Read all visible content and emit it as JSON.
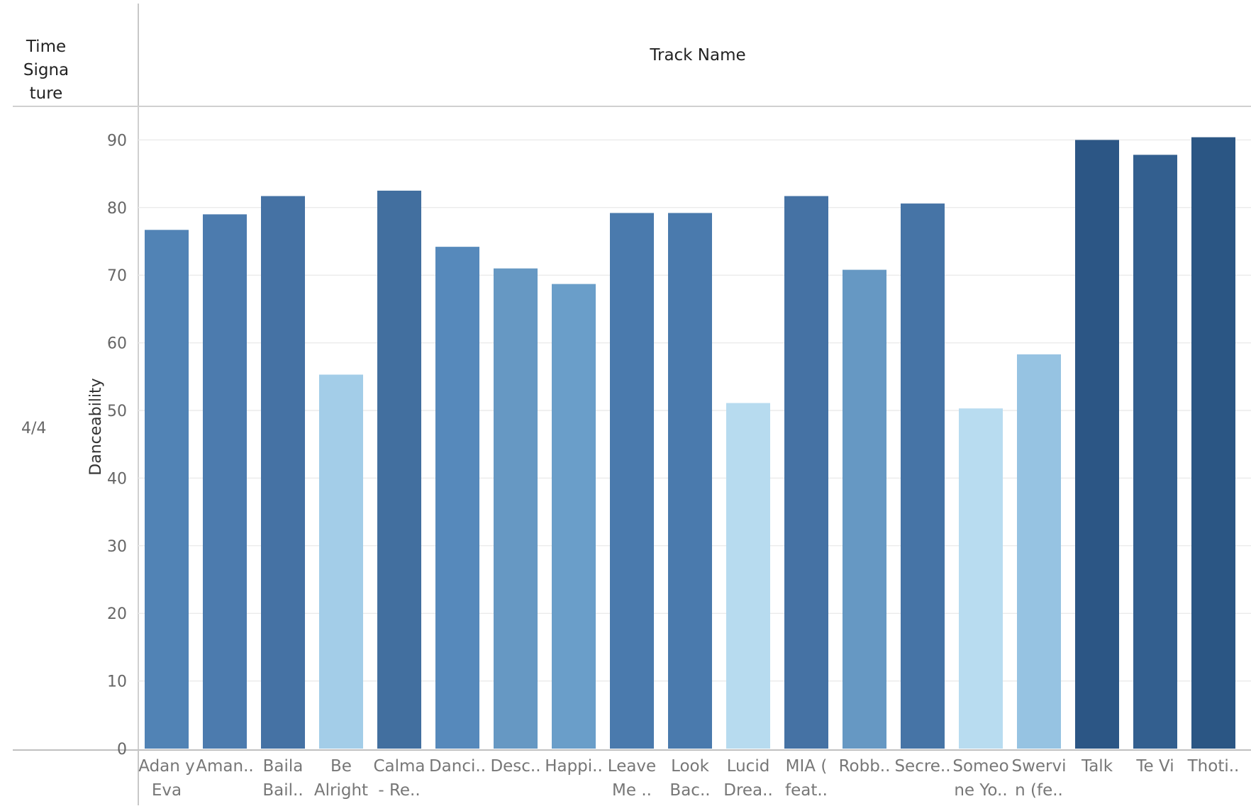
{
  "header": {
    "row_field_lines": [
      "Time",
      "Signa",
      "ture"
    ],
    "column_field": "Track Name"
  },
  "row_label": "4/4",
  "chart_data": {
    "type": "bar",
    "ylabel": "Danceability",
    "xlabel": "",
    "ylim": [
      0,
      95
    ],
    "yticks": [
      0,
      10,
      20,
      30,
      40,
      50,
      60,
      70,
      80,
      90
    ],
    "grid": true,
    "color_encoding": "sequential blue, darker = higher danceability",
    "categories": [
      [
        "Adan y",
        "Eva"
      ],
      [
        "Aman..",
        ""
      ],
      [
        "Baila",
        "Bail.."
      ],
      [
        "Be",
        "Alright"
      ],
      [
        "Calma",
        "- Re.."
      ],
      [
        "Danci..",
        ""
      ],
      [
        "Desc..",
        ""
      ],
      [
        "Happi..",
        ""
      ],
      [
        "Leave",
        "Me .."
      ],
      [
        "Look",
        "Bac.."
      ],
      [
        "Lucid",
        "Drea.."
      ],
      [
        "MIA (",
        "feat.."
      ],
      [
        "Robb..",
        ""
      ],
      [
        "Secre..",
        ""
      ],
      [
        "Someo",
        "ne Yo.."
      ],
      [
        "Swervi",
        "n (fe.."
      ],
      [
        "Talk",
        ""
      ],
      [
        "Te Vi",
        ""
      ],
      [
        "Thoti..",
        ""
      ]
    ],
    "values": [
      76.7,
      79.0,
      81.7,
      55.3,
      82.5,
      74.2,
      71.0,
      68.7,
      79.2,
      79.2,
      51.1,
      81.7,
      70.8,
      80.6,
      50.3,
      58.3,
      90.0,
      87.8,
      90.4
    ],
    "colors": [
      "#5183b5",
      "#4c7bae",
      "#4572a4",
      "#a3cde8",
      "#426f9f",
      "#5689bb",
      "#6698c3",
      "#6a9ec9",
      "#4a7aad",
      "#4a7aad",
      "#b7dbef",
      "#4572a4",
      "#6698c3",
      "#4674a6",
      "#b8dcf0",
      "#96c3e2",
      "#2c5685",
      "#335f8f",
      "#2b5684"
    ]
  }
}
